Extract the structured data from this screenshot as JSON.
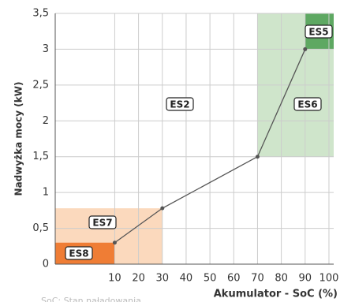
{
  "chart_data": {
    "type": "line",
    "x_label": "Akumulator - SoC (%)",
    "y_label": "Nadwyżka mocy (kW)",
    "note": "SoC: Stan naładowania",
    "xlim": [
      -15,
      102
    ],
    "xticks": [
      10,
      20,
      30,
      40,
      50,
      60,
      70,
      80,
      90,
      100
    ],
    "ylim": [
      0,
      3.5
    ],
    "yticks": [
      0,
      {
        "value": 0.5,
        "label": "0,5"
      },
      1,
      {
        "value": 1.5,
        "label": "1,5"
      },
      2,
      {
        "value": 2.5,
        "label": "2,5"
      },
      3,
      {
        "value": 3.5,
        "label": "3,5"
      }
    ],
    "grid": true,
    "series": [
      {
        "color": "#555555",
        "x": [
          10,
          30,
          70,
          90
        ],
        "values": [
          0.3,
          0.78,
          1.5,
          3
        ]
      }
    ],
    "regions": [
      {
        "label": "ES7",
        "color": "#fbd9bd",
        "x": [
          -15,
          30
        ],
        "y": [
          0,
          0.78
        ]
      },
      {
        "label": "ES8",
        "color": "#ef7d35",
        "x": [
          -15,
          10
        ],
        "y": [
          0,
          0.3
        ]
      },
      {
        "label": "ES6",
        "color": "#cfe5cb",
        "x": [
          70,
          102
        ],
        "y": [
          1.5,
          3.5
        ]
      },
      {
        "label": "ES5",
        "color": "#5ea862",
        "x": [
          90,
          102
        ],
        "y": [
          3,
          3.5
        ]
      }
    ],
    "annotations": [
      "ES2"
    ]
  }
}
